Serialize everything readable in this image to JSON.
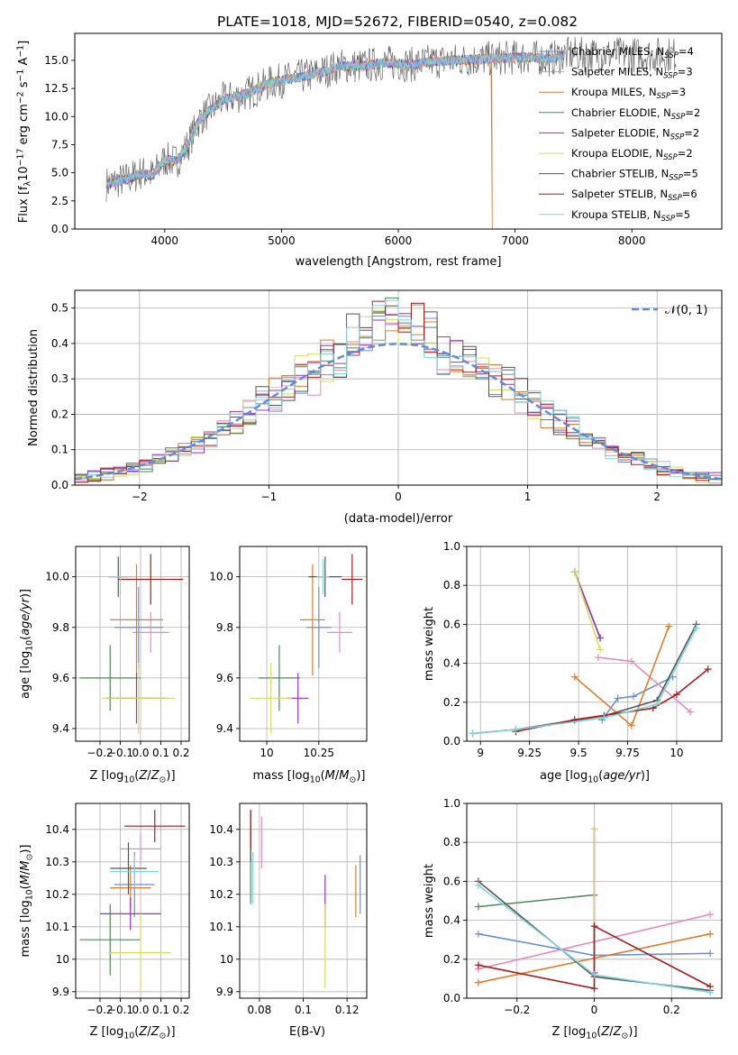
{
  "figure": {
    "title": "PLATE=1018, MJD=52672, FIBERID=0540, z=0.082"
  },
  "colors": {
    "Chabrier MILES": "#6a8ed8",
    "Salpeter MILES": "#e58bbf",
    "Kroupa MILES": "#e07b2a",
    "Chabrier ELODIE": "#4e8a55",
    "Salpeter ELODIE": "#9b2fc0",
    "Kroupa ELODIE": "#d4dc5a",
    "Chabrier STELIB": "#555555",
    "Salpeter STELIB": "#a51d1d",
    "Kroupa STELIB": "#7fd3dc"
  },
  "chart_data": [
    {
      "id": "spectrum",
      "type": "line",
      "title": "PLATE=1018, MJD=52672, FIBERID=0540, z=0.082",
      "xlabel": "wavelength [Angstrom, rest frame]",
      "ylabel": "Flux [f_λ 10^-17 erg cm^-2 s^-1 A^-1]",
      "xlim": [
        3230,
        8770
      ],
      "ylim": [
        0,
        17.4
      ],
      "xticks": [
        4000,
        5000,
        6000,
        7000,
        8000
      ],
      "yticks": [
        0.0,
        2.5,
        5.0,
        7.5,
        10.0,
        12.5,
        15.0
      ],
      "grid": false,
      "legend_position": "right",
      "spectrum_shape": {
        "x": [
          3500,
          3700,
          3800,
          3900,
          4000,
          4100,
          4200,
          4300,
          4500,
          4700,
          4900,
          5100,
          5300,
          5500,
          5700,
          5900,
          6100,
          6300,
          6500,
          6700,
          6900,
          7100,
          7300,
          7400
        ],
        "y": [
          4.0,
          4.5,
          5.0,
          4.8,
          6.2,
          6.0,
          7.5,
          9.8,
          11.5,
          12.0,
          13.0,
          13.4,
          13.8,
          14.5,
          14.5,
          14.8,
          14.6,
          14.9,
          15.0,
          15.1,
          15.2,
          15.3,
          15.1,
          15.4
        ]
      },
      "legend": [
        {
          "label": "Chabrier MILES",
          "nssp": "4"
        },
        {
          "label": "Salpeter MILES",
          "nssp": "3"
        },
        {
          "label": "Kroupa MILES",
          "nssp": "3"
        },
        {
          "label": "Chabrier ELODIE",
          "nssp": "2"
        },
        {
          "label": "Salpeter ELODIE",
          "nssp": "2"
        },
        {
          "label": "Kroupa ELODIE",
          "nssp": "2"
        },
        {
          "label": "Chabrier STELIB",
          "nssp": "5"
        },
        {
          "label": "Salpeter STELIB",
          "nssp": "6"
        },
        {
          "label": "Kroupa STELIB",
          "nssp": "5"
        }
      ]
    },
    {
      "id": "residuals",
      "type": "line",
      "xlabel": "(data-model)/error",
      "ylabel": "Normed distribution",
      "xlim": [
        -2.5,
        2.5
      ],
      "ylim": [
        0,
        0.55
      ],
      "xticks": [
        -2,
        -1,
        0,
        1,
        2
      ],
      "yticks": [
        0.0,
        0.1,
        0.2,
        0.3,
        0.4,
        0.5
      ],
      "grid": true,
      "legend_position": "top-right",
      "legend": [
        {
          "label": "N(0,1)"
        }
      ],
      "histogram_bin_width": 0.1
    },
    {
      "id": "age_vs_Z",
      "type": "scatter",
      "xlabel": "Z [log10(Z/Z⊙)]",
      "ylabel": "age [log10(age/yr)]",
      "xlim": [
        -0.32,
        0.24
      ],
      "ylim": [
        9.35,
        10.12
      ],
      "xticks": [
        -0.2,
        -0.1,
        0.0,
        0.1,
        0.2
      ],
      "yticks": [
        9.4,
        9.6,
        9.8,
        10.0
      ],
      "grid": true,
      "points": [
        {
          "model": "Chabrier MILES",
          "x": -0.01,
          "y": 9.8,
          "xerr": 0.12,
          "yerr": 0.16
        },
        {
          "model": "Salpeter MILES",
          "x": 0.05,
          "y": 9.78,
          "xerr": 0.09,
          "yerr": 0.08
        },
        {
          "model": "Kroupa MILES",
          "x": -0.02,
          "y": 9.83,
          "xerr": 0.13,
          "yerr": 0.22
        },
        {
          "model": "Chabrier ELODIE",
          "x": -0.15,
          "y": 9.6,
          "xerr": 0.15,
          "yerr": 0.13
        },
        {
          "model": "Salpeter ELODIE",
          "x": -0.02,
          "y": 9.52,
          "xerr": 0.15,
          "yerr": 0.1
        },
        {
          "model": "Kroupa ELODIE",
          "x": -0.01,
          "y": 9.52,
          "xerr": 0.18,
          "yerr": 0.14
        },
        {
          "model": "Chabrier STELIB",
          "x": -0.11,
          "y": 10.0,
          "xerr": 0.05,
          "yerr": 0.08
        },
        {
          "model": "Salpeter STELIB",
          "x": 0.05,
          "y": 9.99,
          "xerr": 0.16,
          "yerr": 0.1
        },
        {
          "model": "Kroupa STELIB",
          "x": -0.1,
          "y": 10.0,
          "xerr": 0.06,
          "yerr": 0.07
        }
      ]
    },
    {
      "id": "age_vs_mass",
      "type": "scatter",
      "xlabel": "mass [log10(M/M⊙)]",
      "ylabel": "",
      "xlim": [
        9.87,
        10.48
      ],
      "ylim": [
        9.35,
        10.12
      ],
      "xticks": [
        10.0,
        10.25
      ],
      "yticks": [
        9.4,
        9.6,
        9.8,
        10.0
      ],
      "grid": true,
      "points": [
        {
          "model": "Chabrier MILES",
          "x": 10.25,
          "y": 9.8,
          "xerr": 0.06,
          "yerr": 0.16
        },
        {
          "model": "Salpeter MILES",
          "x": 10.35,
          "y": 9.78,
          "xerr": 0.06,
          "yerr": 0.08
        },
        {
          "model": "Kroupa MILES",
          "x": 10.22,
          "y": 9.83,
          "xerr": 0.06,
          "yerr": 0.22
        },
        {
          "model": "Chabrier ELODIE",
          "x": 10.06,
          "y": 9.6,
          "xerr": 0.1,
          "yerr": 0.13
        },
        {
          "model": "Salpeter ELODIE",
          "x": 10.15,
          "y": 9.52,
          "xerr": 0.05,
          "yerr": 0.1
        },
        {
          "model": "Kroupa ELODIE",
          "x": 10.02,
          "y": 9.52,
          "xerr": 0.1,
          "yerr": 0.14
        },
        {
          "model": "Chabrier STELIB",
          "x": 10.28,
          "y": 10.0,
          "xerr": 0.08,
          "yerr": 0.08
        },
        {
          "model": "Salpeter STELIB",
          "x": 10.41,
          "y": 9.99,
          "xerr": 0.05,
          "yerr": 0.1
        },
        {
          "model": "Kroupa STELIB",
          "x": 10.27,
          "y": 10.0,
          "xerr": 0.03,
          "yerr": 0.07
        }
      ]
    },
    {
      "id": "massweight_vs_age",
      "type": "line",
      "xlabel": "age [log10(age/yr)]",
      "ylabel": "mass weight",
      "xlim": [
        8.93,
        10.23
      ],
      "ylim": [
        0,
        1.0
      ],
      "xticks": [
        9.0,
        9.25,
        9.5,
        9.75,
        10.0
      ],
      "yticks": [
        0.0,
        0.2,
        0.4,
        0.6,
        0.8,
        1.0
      ],
      "grid": true,
      "series": [
        {
          "model": "Chabrier MILES",
          "x": [
            9.62,
            9.7,
            9.78,
            9.98
          ],
          "y": [
            0.11,
            0.22,
            0.23,
            0.33
          ]
        },
        {
          "model": "Salpeter MILES",
          "x": [
            9.6,
            9.77,
            10.07
          ],
          "y": [
            0.43,
            0.41,
            0.15
          ]
        },
        {
          "model": "Kroupa MILES",
          "x": [
            9.48,
            9.77,
            9.96
          ],
          "y": [
            0.33,
            0.08,
            0.59
          ]
        },
        {
          "model": "Chabrier ELODIE",
          "x": [
            9.48,
            9.61
          ],
          "y": [
            0.87,
            0.53
          ]
        },
        {
          "model": "Salpeter ELODIE",
          "x": [
            9.48,
            9.61
          ],
          "y": [
            0.87,
            0.53
          ]
        },
        {
          "model": "Kroupa ELODIE",
          "x": [
            9.48,
            9.61
          ],
          "y": [
            0.87,
            0.47
          ]
        },
        {
          "model": "Chabrier STELIB",
          "x": [
            8.96,
            9.18,
            9.63,
            9.9,
            10.1
          ],
          "y": [
            0.04,
            0.06,
            0.13,
            0.21,
            0.6
          ]
        },
        {
          "model": "Salpeter STELIB",
          "x": [
            9.18,
            9.48,
            9.88,
            10.0,
            10.16
          ],
          "y": [
            0.05,
            0.11,
            0.17,
            0.24,
            0.37
          ]
        },
        {
          "model": "Kroupa STELIB",
          "x": [
            8.96,
            9.18,
            9.63,
            9.9,
            10.1
          ],
          "y": [
            0.04,
            0.06,
            0.12,
            0.19,
            0.58
          ]
        }
      ]
    },
    {
      "id": "mass_vs_Z",
      "type": "scatter",
      "xlabel": "Z [log10(Z/Z⊙)]",
      "ylabel": "mass [log10(M/M⊙)]",
      "xlim": [
        -0.32,
        0.24
      ],
      "ylim": [
        9.88,
        10.48
      ],
      "xticks": [
        -0.2,
        -0.1,
        0.0,
        0.1,
        0.2
      ],
      "yticks": [
        9.9,
        10.0,
        10.1,
        10.2,
        10.3,
        10.4
      ],
      "grid": true,
      "points": [
        {
          "model": "Chabrier MILES",
          "x": -0.03,
          "y": 10.23,
          "xerr": 0.1,
          "yerr": 0.1
        },
        {
          "model": "Salpeter MILES",
          "x": 0.0,
          "y": 10.34,
          "xerr": 0.1,
          "yerr": 0.05
        },
        {
          "model": "Kroupa MILES",
          "x": -0.05,
          "y": 10.22,
          "xerr": 0.1,
          "yerr": 0.07
        },
        {
          "model": "Chabrier ELODIE",
          "x": -0.15,
          "y": 10.06,
          "xerr": 0.15,
          "yerr": 0.11
        },
        {
          "model": "Salpeter ELODIE",
          "x": -0.05,
          "y": 10.14,
          "xerr": 0.15,
          "yerr": 0.05
        },
        {
          "model": "Kroupa ELODIE",
          "x": 0.0,
          "y": 10.02,
          "xerr": 0.15,
          "yerr": 0.12
        },
        {
          "model": "Chabrier STELIB",
          "x": -0.06,
          "y": 10.28,
          "xerr": 0.09,
          "yerr": 0.08
        },
        {
          "model": "Salpeter STELIB",
          "x": 0.07,
          "y": 10.41,
          "xerr": 0.15,
          "yerr": 0.05
        },
        {
          "model": "Kroupa STELIB",
          "x": -0.03,
          "y": 10.27,
          "xerr": 0.12,
          "yerr": 0.05
        }
      ]
    },
    {
      "id": "mass_vs_EBV",
      "type": "scatter",
      "xlabel": "E(B-V)",
      "ylabel": "",
      "xlim": [
        0.071,
        0.129
      ],
      "ylim": [
        9.88,
        10.48
      ],
      "xticks": [
        0.08,
        0.1,
        0.12
      ],
      "yticks": [
        9.9,
        10.0,
        10.1,
        10.2,
        10.3,
        10.4
      ],
      "grid": true,
      "points": [
        {
          "model": "Chabrier MILES",
          "x": 0.126,
          "y": 10.23,
          "xerr": 0,
          "yerr": 0.09
        },
        {
          "model": "Salpeter MILES",
          "x": 0.081,
          "y": 10.36,
          "xerr": 0,
          "yerr": 0.08
        },
        {
          "model": "Kroupa MILES",
          "x": 0.124,
          "y": 10.21,
          "xerr": 0,
          "yerr": 0.08
        },
        {
          "model": "Chabrier ELODIE",
          "x": 0.076,
          "y": 10.29,
          "xerr": 0,
          "yerr": 0.12
        },
        {
          "model": "Salpeter ELODIE",
          "x": 0.11,
          "y": 10.18,
          "xerr": 0,
          "yerr": 0.08
        },
        {
          "model": "Kroupa ELODIE",
          "x": 0.11,
          "y": 10.04,
          "xerr": 0,
          "yerr": 0.13
        },
        {
          "model": "Chabrier STELIB",
          "x": 0.076,
          "y": 10.38,
          "xerr": 0,
          "yerr": 0.08
        },
        {
          "model": "Salpeter STELIB",
          "x": 0.076,
          "y": 10.4,
          "xerr": 0,
          "yerr": 0.06
        },
        {
          "model": "Kroupa STELIB",
          "x": 0.077,
          "y": 10.25,
          "xerr": 0,
          "yerr": 0.08
        }
      ]
    },
    {
      "id": "massweight_vs_Z",
      "type": "line",
      "xlabel": "Z [log10(Z/Z⊙)]",
      "ylabel": "mass weight",
      "xlim": [
        -0.33,
        0.33
      ],
      "ylim": [
        0,
        1.0
      ],
      "xticks": [
        -0.2,
        0.0,
        0.2
      ],
      "yticks": [
        0.0,
        0.2,
        0.4,
        0.6,
        0.8,
        1.0
      ],
      "grid": true,
      "series": [
        {
          "model": "Chabrier MILES",
          "x": [
            -0.3,
            0.0,
            0.3
          ],
          "y": [
            0.33,
            0.22,
            0.23
          ]
        },
        {
          "model": "Salpeter MILES",
          "x": [
            -0.3,
            0.3
          ],
          "y": [
            0.15,
            0.43
          ]
        },
        {
          "model": "Kroupa MILES",
          "x": [
            -0.3,
            0.3
          ],
          "y": [
            0.08,
            0.33
          ]
        },
        {
          "model": "Chabrier ELODIE",
          "x": [
            -0.3,
            0.0
          ],
          "y": [
            0.47,
            0.53
          ]
        },
        {
          "model": "Salpeter ELODIE",
          "x": [
            0.0,
            0.0
          ],
          "y": [
            0.87,
            0.13
          ]
        },
        {
          "model": "Kroupa ELODIE",
          "x": [
            0.0,
            0.0
          ],
          "y": [
            0.87,
            0.11
          ]
        },
        {
          "model": "Chabrier STELIB",
          "x": [
            -0.3,
            0.0,
            0.3
          ],
          "y": [
            0.6,
            0.11,
            0.04
          ]
        },
        {
          "model": "Salpeter STELIB",
          "x": [
            -0.3,
            0.0,
            0.0,
            0.3
          ],
          "y": [
            0.17,
            0.05,
            0.37,
            0.06
          ]
        },
        {
          "model": "Kroupa STELIB",
          "x": [
            -0.3,
            0.0,
            0.3
          ],
          "y": [
            0.58,
            0.12,
            0.03
          ]
        }
      ]
    }
  ]
}
